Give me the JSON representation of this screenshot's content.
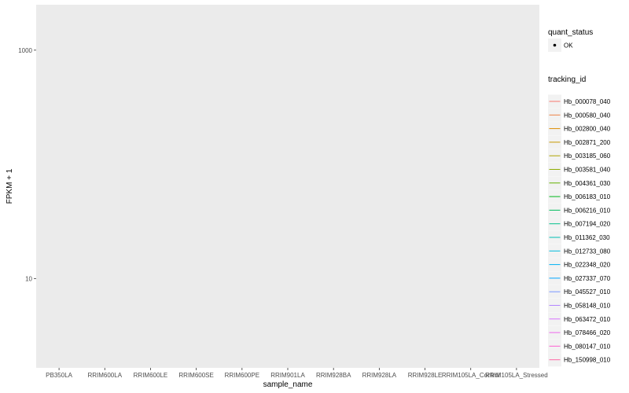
{
  "chart_data": {
    "type": "line",
    "title": "",
    "xlabel": "sample_name",
    "ylabel": "FPKM + 1",
    "y_scale": "log10",
    "ylim": [
      1.65,
      2500
    ],
    "y_ticks": [
      {
        "value": 10,
        "label": "10"
      },
      {
        "value": 1000,
        "label": "1000"
      }
    ],
    "grid": true,
    "legend_position": "right",
    "panel_background": "#ebebeb",
    "categories": [
      "PB350LA",
      "RRIM600LA",
      "RRIM600LE",
      "RRIM600SE",
      "RRIM600PE",
      "RRIM901LA",
      "RRIM928BA",
      "RRIM928LA",
      "RRIM928LE",
      "RRIM105LA_Control",
      "RRIM105LA_Stressed"
    ],
    "point_legend": {
      "title": "quant_status",
      "entries": [
        {
          "label": "OK",
          "color": "#000000"
        }
      ]
    },
    "line_legend_title": "tracking_id",
    "series": [
      {
        "name": "Hb_000078_040",
        "color": "#F8766D",
        "values": [
          2,
          2,
          2,
          2.05,
          2,
          2.1,
          2.05,
          2,
          2,
          2,
          2
        ]
      },
      {
        "name": "Hb_000580_040",
        "color": "#EE8044",
        "values": [
          2,
          2,
          2,
          520,
          2,
          1500,
          63,
          2,
          2,
          2,
          2
        ]
      },
      {
        "name": "Hb_002800_040",
        "color": "#DE8C00",
        "values": [
          2,
          2,
          2,
          2.8,
          2,
          3.1,
          2.1,
          2,
          2,
          2,
          2
        ]
      },
      {
        "name": "Hb_002871_200",
        "color": "#C79800",
        "values": [
          2,
          2,
          2,
          2.2,
          2,
          2.3,
          2.05,
          2,
          2,
          2,
          2
        ]
      },
      {
        "name": "Hb_003185_060",
        "color": "#AFA100",
        "values": [
          2,
          2,
          2.05,
          2.15,
          2,
          2.2,
          2.05,
          2,
          2,
          2,
          2
        ]
      },
      {
        "name": "Hb_003581_040",
        "color": "#8EAB00",
        "values": [
          2,
          2,
          2.1,
          2.35,
          2,
          2.25,
          2.08,
          2,
          2,
          2,
          2
        ]
      },
      {
        "name": "Hb_004361_030",
        "color": "#64B200",
        "values": [
          2,
          2,
          2.05,
          2.45,
          2,
          2.3,
          2.1,
          2,
          2,
          2,
          2
        ]
      },
      {
        "name": "Hb_006183_010",
        "color": "#00B81B",
        "values": [
          2,
          2,
          2.1,
          2.2,
          2,
          2.15,
          2.05,
          2,
          2,
          2,
          2
        ]
      },
      {
        "name": "Hb_006216_010",
        "color": "#00BD5C",
        "values": [
          2,
          2,
          2.05,
          2.6,
          2,
          2.35,
          2.1,
          2,
          2,
          2,
          2
        ]
      },
      {
        "name": "Hb_007194_020",
        "color": "#00C08B",
        "values": [
          2,
          2,
          2.1,
          2.25,
          2,
          2.2,
          2.08,
          2,
          2,
          2,
          2
        ]
      },
      {
        "name": "Hb_011362_030",
        "color": "#00BFB4",
        "values": [
          2,
          2,
          2.05,
          2.3,
          2,
          2.25,
          2.1,
          2,
          2,
          2,
          2
        ]
      },
      {
        "name": "Hb_012733_080",
        "color": "#00BBDB",
        "values": [
          2,
          2,
          2.12,
          2.7,
          2,
          2.4,
          2.1,
          2,
          2,
          2,
          2
        ]
      },
      {
        "name": "Hb_022348_020",
        "color": "#00B2F3",
        "values": [
          2,
          2,
          2.05,
          2.2,
          2,
          2.2,
          2.05,
          2,
          2,
          2,
          2
        ]
      },
      {
        "name": "Hb_027337_070",
        "color": "#00A5FF",
        "values": [
          2,
          2,
          2.15,
          2.3,
          2,
          2.7,
          2.1,
          2,
          2,
          2,
          2
        ]
      },
      {
        "name": "Hb_045527_010",
        "color": "#7997FF",
        "values": [
          2,
          2,
          2.05,
          2.15,
          2,
          2.35,
          2.1,
          2,
          2,
          2,
          2
        ]
      },
      {
        "name": "Hb_058148_010",
        "color": "#B385FF",
        "values": [
          2,
          2,
          2.1,
          2.2,
          2,
          2.25,
          2.15,
          2,
          2,
          2,
          2
        ]
      },
      {
        "name": "Hb_063472_010",
        "color": "#D874FD",
        "values": [
          2,
          2,
          2.05,
          2.25,
          2,
          2.15,
          2.1,
          2,
          2,
          2,
          2
        ]
      },
      {
        "name": "Hb_078466_020",
        "color": "#EF67EB",
        "values": [
          2,
          2,
          2.05,
          2.1,
          2,
          2.2,
          2.05,
          2,
          2,
          2,
          2
        ]
      },
      {
        "name": "Hb_080147_010",
        "color": "#FD61D3",
        "values": [
          2,
          2,
          2.1,
          2.3,
          2,
          2.15,
          2.1,
          2,
          2,
          2,
          2
        ]
      },
      {
        "name": "Hb_150998_010",
        "color": "#FF67A4",
        "values": [
          2,
          2,
          2.08,
          2.4,
          2,
          2.2,
          2.12,
          2,
          2,
          2,
          2
        ]
      }
    ]
  }
}
